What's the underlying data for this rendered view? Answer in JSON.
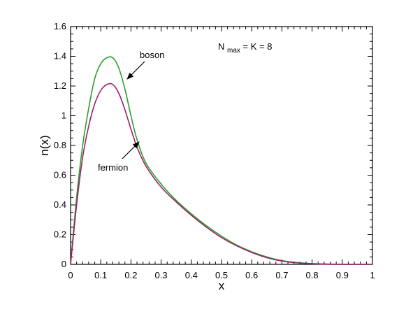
{
  "chart_data": {
    "type": "line",
    "xlabel": "x",
    "ylabel": "n(x)",
    "xlim": [
      0,
      1
    ],
    "ylim": [
      0,
      1.6
    ],
    "x_ticks": [
      "0",
      "0.1",
      "0.2",
      "0.3",
      "0.4",
      "0.5",
      "0.6",
      "0.7",
      "0.8",
      "0.9",
      "1"
    ],
    "y_ticks": [
      "0",
      "0.2",
      "0.4",
      "0.6",
      "0.8",
      "1",
      "1.2",
      "1.4",
      "1.6"
    ],
    "annotation": {
      "main": "N",
      "sub": "max",
      "rest": " = K = 8"
    },
    "grid": false,
    "series": [
      {
        "name": "boson",
        "color": "#2ca02c",
        "x": [
          0,
          0.02,
          0.04,
          0.06,
          0.08,
          0.1,
          0.12,
          0.14,
          0.16,
          0.18,
          0.2,
          0.22,
          0.25,
          0.3,
          0.35,
          0.4,
          0.45,
          0.5,
          0.55,
          0.6,
          0.65,
          0.7,
          0.75,
          0.8,
          0.85,
          0.9,
          0.95,
          1.0
        ],
        "y": [
          0.0,
          0.45,
          0.8,
          1.05,
          1.25,
          1.35,
          1.39,
          1.39,
          1.32,
          1.18,
          1.0,
          0.84,
          0.68,
          0.54,
          0.43,
          0.34,
          0.26,
          0.19,
          0.13,
          0.085,
          0.05,
          0.025,
          0.012,
          0.005,
          0.002,
          0.0,
          0.0,
          0.0
        ]
      },
      {
        "name": "fermion",
        "color": "#a0206e",
        "x": [
          0,
          0.02,
          0.04,
          0.06,
          0.08,
          0.1,
          0.12,
          0.14,
          0.16,
          0.18,
          0.2,
          0.22,
          0.25,
          0.3,
          0.35,
          0.4,
          0.45,
          0.5,
          0.55,
          0.6,
          0.65,
          0.7,
          0.75,
          0.8,
          0.85,
          0.9,
          0.95,
          1.0
        ],
        "y": [
          0.0,
          0.4,
          0.72,
          0.93,
          1.08,
          1.17,
          1.21,
          1.21,
          1.15,
          1.04,
          0.91,
          0.79,
          0.66,
          0.52,
          0.42,
          0.33,
          0.25,
          0.18,
          0.125,
          0.08,
          0.045,
          0.022,
          0.01,
          0.004,
          0.001,
          0.0,
          0.0,
          0.0
        ]
      }
    ],
    "labels": {
      "boson": {
        "text": "boson",
        "anchor_x": 0.19,
        "anchor_y": 1.23
      },
      "fermion": {
        "text": "fermion",
        "anchor_x": 0.235,
        "anchor_y": 0.83
      }
    }
  }
}
